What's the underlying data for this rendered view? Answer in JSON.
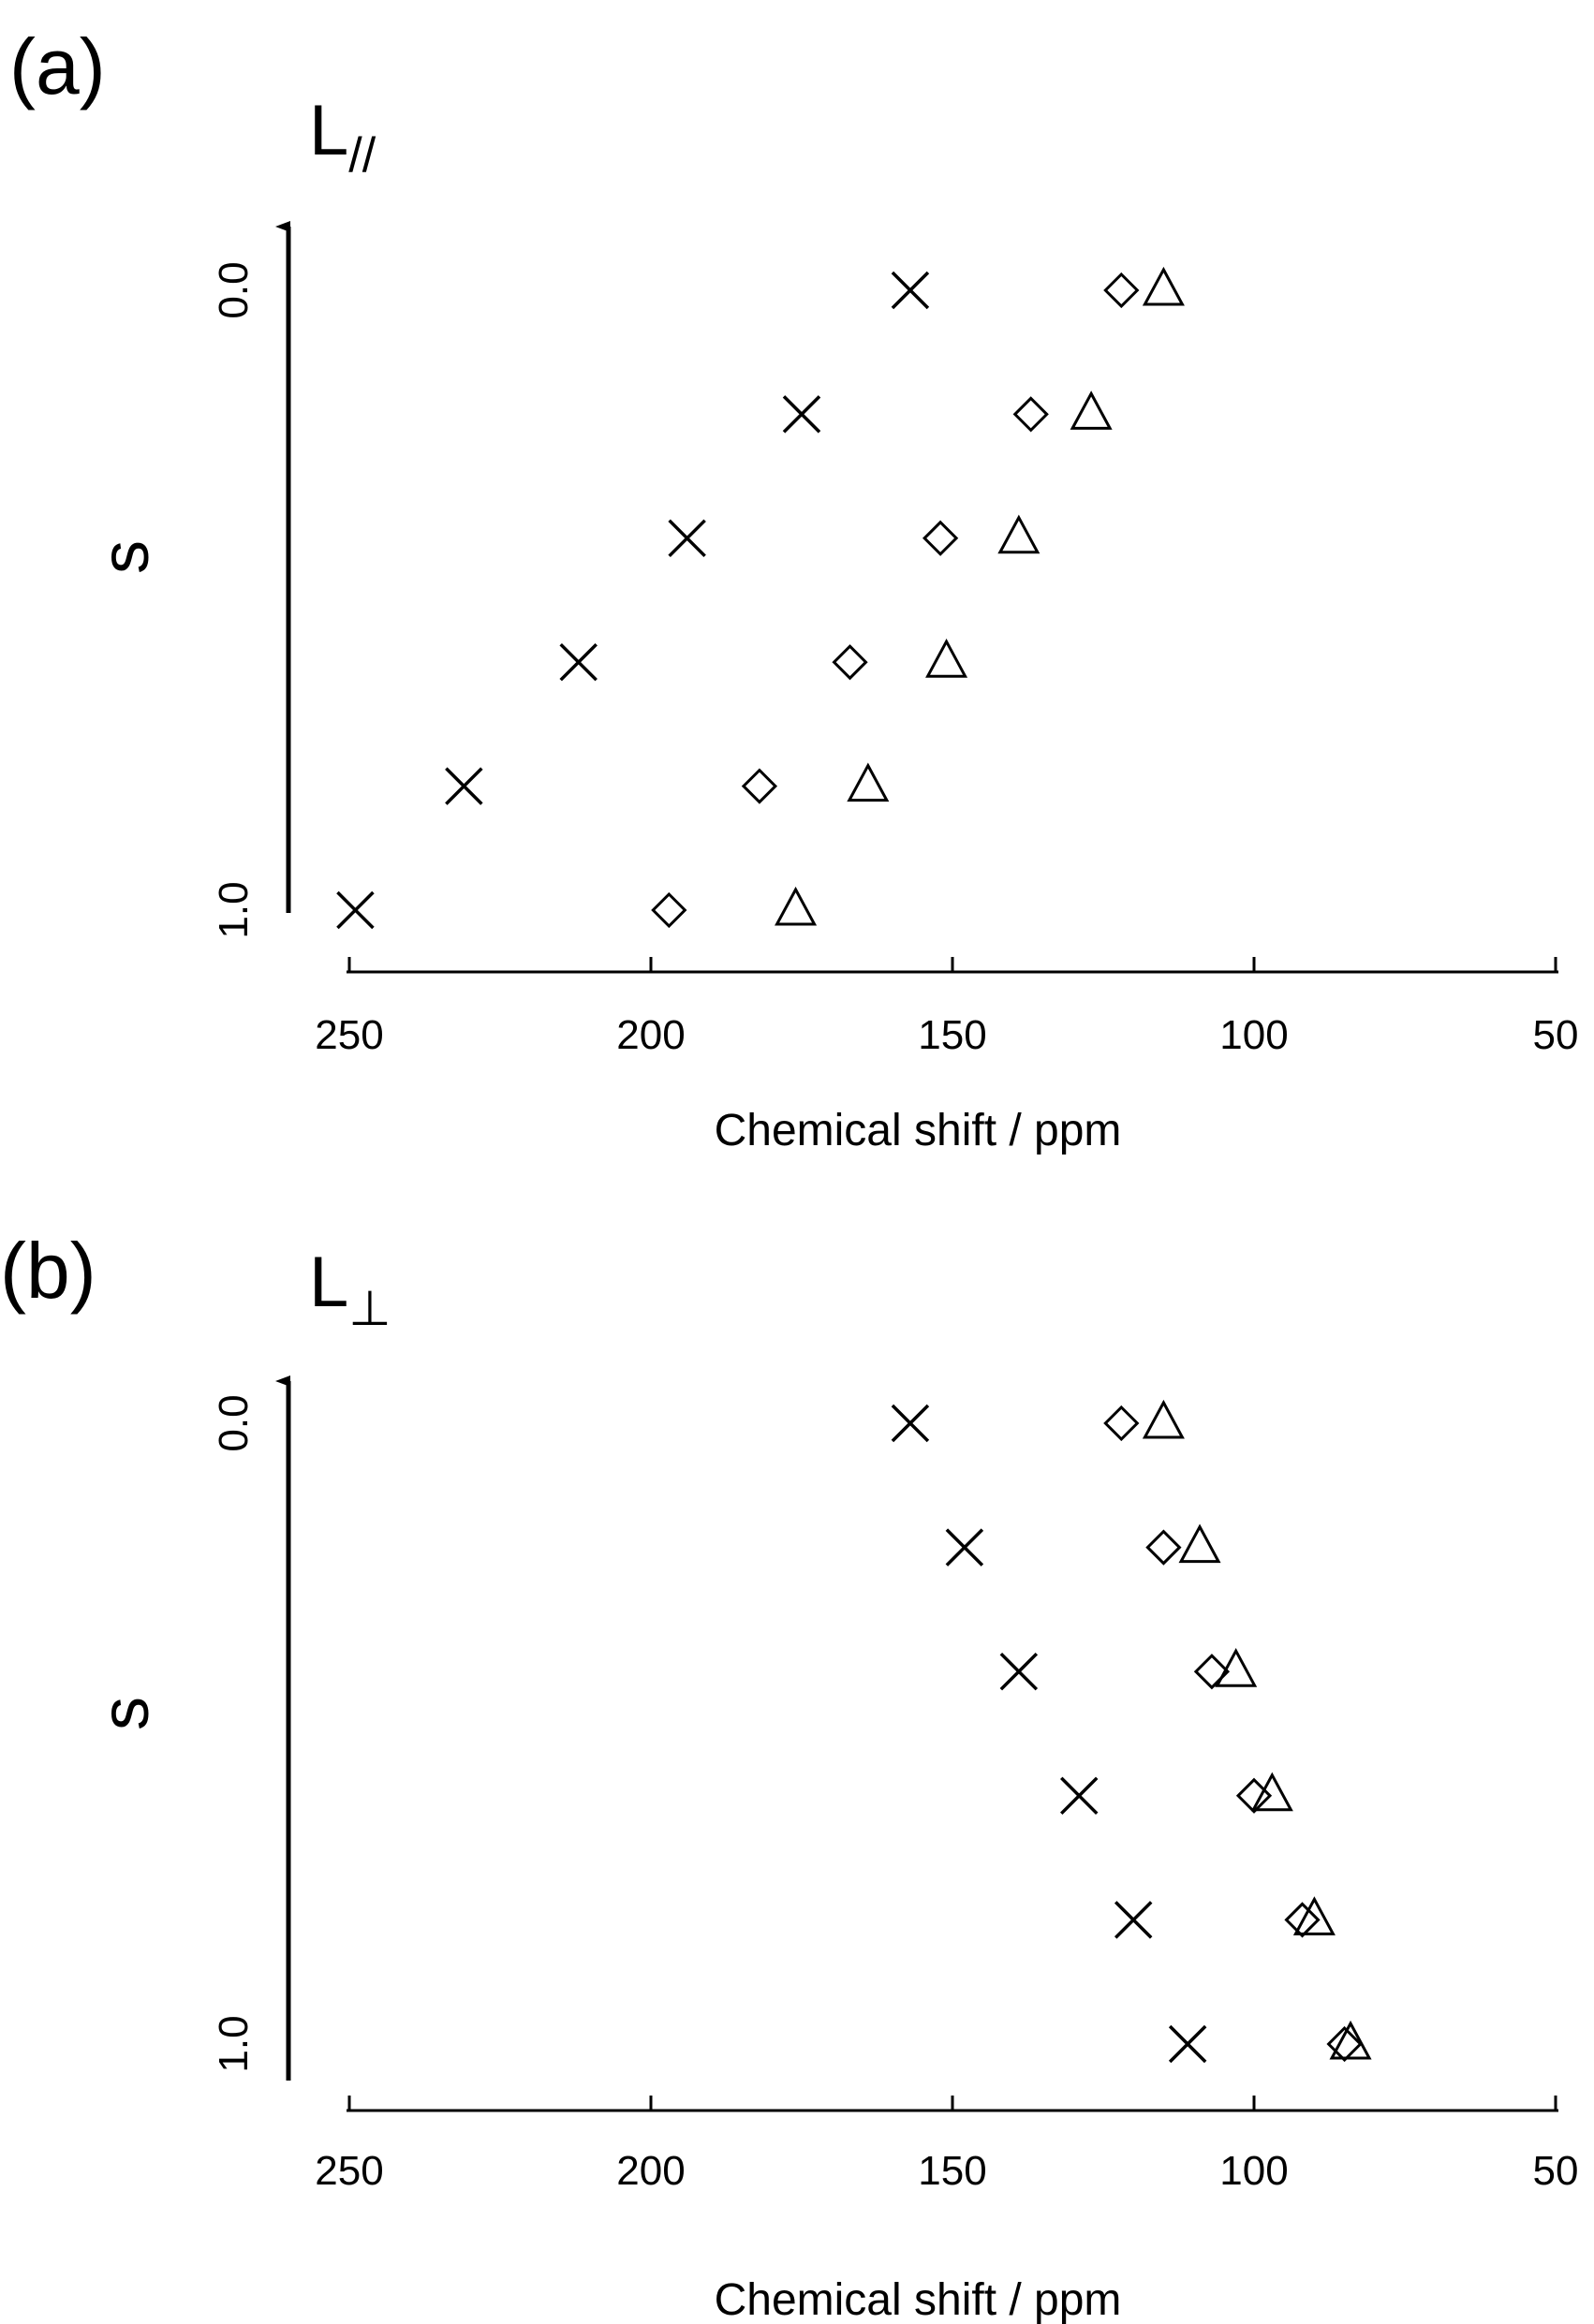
{
  "chart_data": [
    {
      "type": "scatter",
      "panel_label": "(a)",
      "title": "L",
      "title_subscript": "//",
      "xlabel": "Chemical shift  / ppm",
      "ylabel": "s",
      "xlim": [
        250,
        50
      ],
      "xticks": [
        "250",
        "200",
        "150",
        "100",
        "50"
      ],
      "ylim": [
        0.0,
        1.0
      ],
      "yticks": [
        "0.0",
        "1.0"
      ],
      "y": [
        0.0,
        0.2,
        0.4,
        0.6,
        0.8,
        1.0
      ],
      "series": [
        {
          "marker": "cross",
          "x": [
            157,
            175,
            194,
            212,
            231,
            249
          ]
        },
        {
          "marker": "diamond",
          "x": [
            122,
            137,
            152,
            167,
            182,
            197
          ]
        },
        {
          "marker": "triangle",
          "x": [
            115,
            127,
            139,
            151,
            164,
            176
          ]
        }
      ],
      "grid": false
    },
    {
      "type": "scatter",
      "panel_label": "(b)",
      "title": "L",
      "title_subscript": "⊥",
      "xlabel": "Chemical shift  / ppm",
      "ylabel": "s",
      "xlim": [
        250,
        50
      ],
      "xticks": [
        "250",
        "200",
        "150",
        "100",
        "50"
      ],
      "ylim": [
        0.0,
        1.0
      ],
      "yticks": [
        "0.0",
        "1.0"
      ],
      "y": [
        0.0,
        0.2,
        0.4,
        0.6,
        0.8,
        1.0
      ],
      "series": [
        {
          "marker": "cross",
          "x": [
            157,
            148,
            139,
            129,
            120,
            111
          ]
        },
        {
          "marker": "diamond",
          "x": [
            122,
            115,
            107,
            100,
            92,
            85
          ]
        },
        {
          "marker": "triangle",
          "x": [
            115,
            109,
            103,
            97,
            90,
            84
          ]
        }
      ],
      "grid": false
    }
  ]
}
